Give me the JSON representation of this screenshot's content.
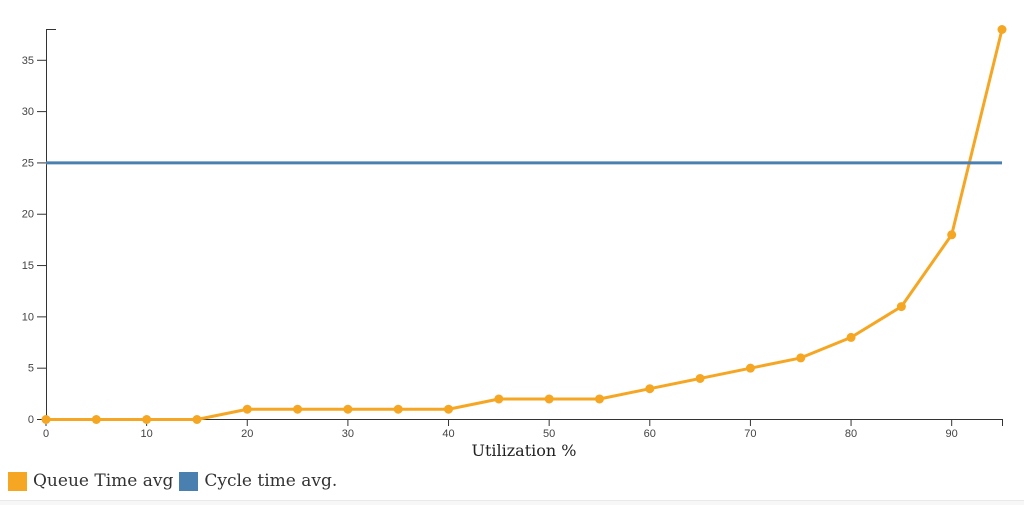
{
  "page": {
    "background": "#ffffff"
  },
  "axis": {
    "line_color": "#333333",
    "tick_label_color": "#444444",
    "axis_title_color": "#222222"
  },
  "chart_data": {
    "type": "line",
    "title": "",
    "xlabel": "Utilization %",
    "ylabel": "",
    "xlim": [
      0,
      95
    ],
    "ylim": [
      0,
      38
    ],
    "x_ticks": [
      0,
      10,
      20,
      30,
      40,
      50,
      60,
      70,
      80,
      90
    ],
    "y_ticks": [
      0,
      5,
      10,
      15,
      20,
      25,
      30,
      35
    ],
    "grid": false,
    "legend_position": "bottom-left",
    "x": [
      0,
      5,
      10,
      15,
      20,
      25,
      30,
      35,
      40,
      45,
      50,
      55,
      60,
      65,
      70,
      75,
      80,
      85,
      90,
      95
    ],
    "series": [
      {
        "name": "Queue Time avg",
        "type": "line+markers",
        "color": "#F5A623",
        "values": [
          0,
          0,
          0,
          0,
          1,
          1,
          1,
          1,
          1,
          2,
          2,
          2,
          3,
          4,
          5,
          6,
          8,
          11,
          18,
          38
        ]
      },
      {
        "name": "Cycle time avg.",
        "type": "hline",
        "color": "#4A80AF",
        "value": 25
      }
    ]
  }
}
